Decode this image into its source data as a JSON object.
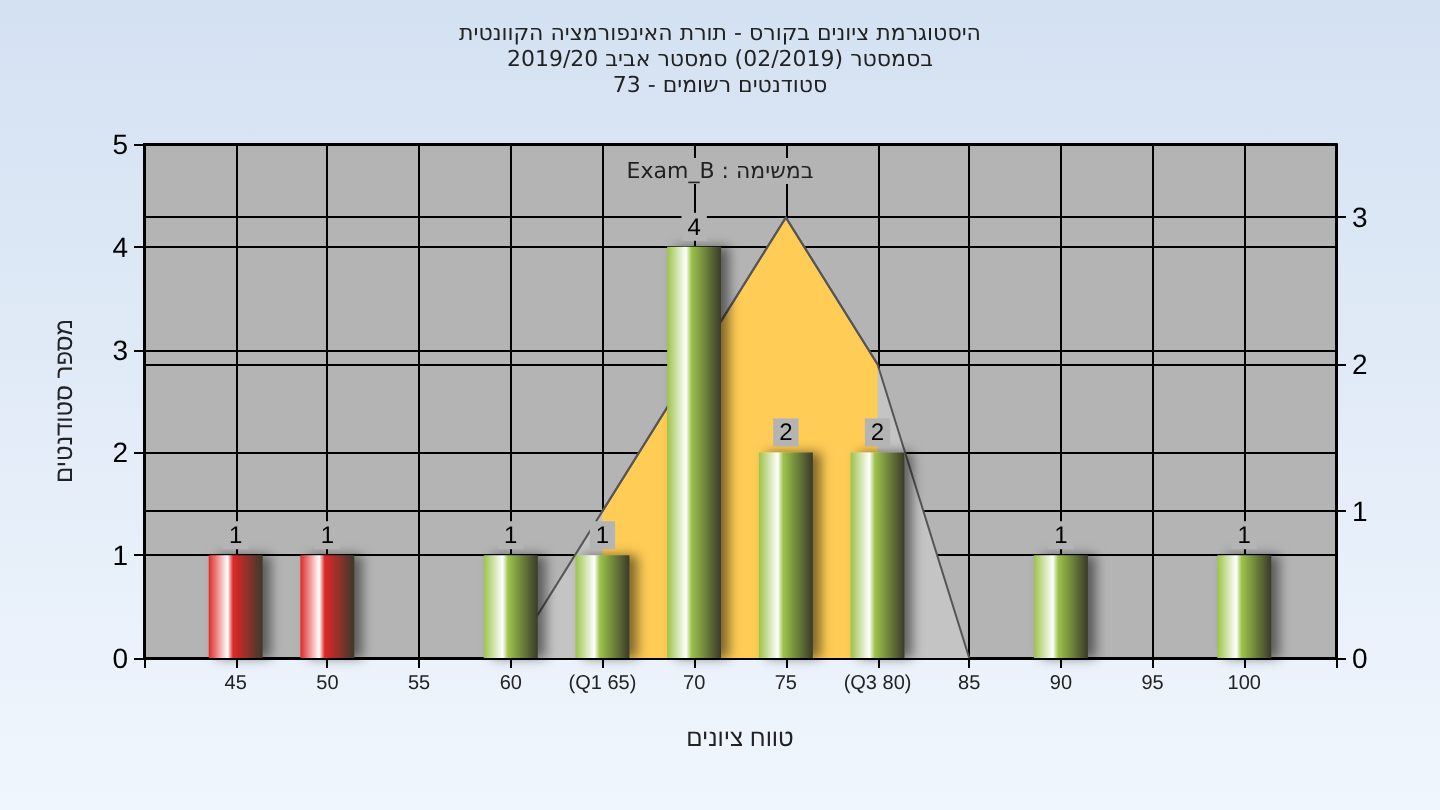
{
  "chart_data": {
    "type": "bar",
    "title": "היסטוגרמת ציונים בקורס - תורת האינפורמציה הקוונטית",
    "subtitle": "בסמסטר  (02/2019)  סמסטר אביב 2019/20\nסטודנטים רשומים - 73",
    "xlabel": "טווח ציונים",
    "ylabel": "מספר סטודנטים",
    "annotations": [
      "Exam_B : במשימה"
    ],
    "series": [
      {
        "x": [
          45,
          50,
          60,
          65,
          70,
          75,
          80,
          90,
          100
        ],
        "values": [
          1,
          1,
          1,
          1,
          4,
          2,
          2,
          1,
          1
        ],
        "value_labels": [
          "1",
          "1",
          "1",
          "1",
          "4",
          "2",
          "2",
          "1",
          "1"
        ],
        "colors": [
          "#e02828",
          "#e02828",
          "#9cc34a",
          "#9cc34a",
          "#9cc34a",
          "#9cc34a",
          "#9cc34a",
          "#9cc34a",
          "#9cc34a"
        ]
      },
      {
        "type": "area",
        "axis": "y2",
        "x": [
          60,
          65,
          75,
          80,
          85
        ],
        "values": [
          0,
          1,
          3,
          2,
          0
        ],
        "color": "#c4c4c4"
      },
      {
        "type": "area",
        "axis": "y2",
        "x": [
          65,
          75,
          80
        ],
        "values": [
          1,
          3,
          2
        ],
        "color": "#ffcc55"
      }
    ],
    "xlim": [
      40,
      105
    ],
    "xticks": [
      {
        "value": 40,
        "label": null
      },
      45,
      50,
      55,
      60,
      {
        "value": 65,
        "label": "(Q1 65)"
      },
      70,
      75,
      {
        "value": 80,
        "label": "(Q3 80)"
      },
      85,
      90,
      95,
      100,
      {
        "value": 105,
        "label": null
      }
    ],
    "ylim": [
      0,
      5
    ],
    "yticks": [
      0,
      1,
      2,
      3,
      4,
      5
    ],
    "y2lim": [
      0,
      3.5
    ],
    "y2ticks": [
      0,
      1,
      2,
      3
    ],
    "grid": true
  }
}
